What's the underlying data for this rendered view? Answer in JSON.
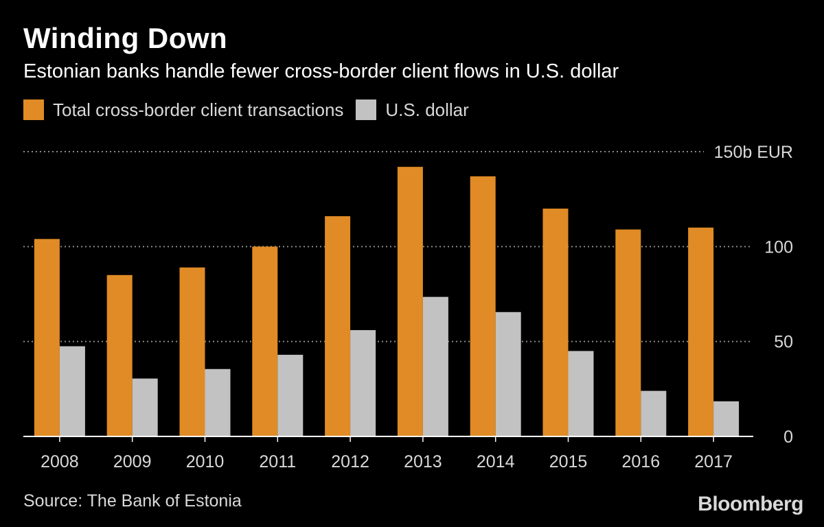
{
  "title": "Winding Down",
  "subtitle": "Estonian banks handle fewer cross-border client flows in U.S. dollar",
  "source": "Source: The Bank of Estonia",
  "brand": "Bloomberg",
  "colors": {
    "background": "#000000",
    "total": "#E08B25",
    "usd": "#C2C2C2",
    "text": "#D9D9D9",
    "gridline": "#8C8C8C"
  },
  "chart_data": {
    "type": "bar",
    "title": "Winding Down",
    "subtitle": "Estonian banks handle fewer cross-border client flows in U.S. dollar",
    "xlabel": "",
    "ylabel": "",
    "ylim": [
      0,
      150
    ],
    "y_unit_label": "150b EUR",
    "y_ticks": [
      {
        "value": 0,
        "label": "0"
      },
      {
        "value": 50,
        "label": "50"
      },
      {
        "value": 100,
        "label": "100"
      },
      {
        "value": 150,
        "label": "150b EUR"
      }
    ],
    "grid": true,
    "legend_position": "top-left",
    "categories": [
      "2008",
      "2009",
      "2010",
      "2011",
      "2012",
      "2013",
      "2014",
      "2015",
      "2016",
      "2017"
    ],
    "series": [
      {
        "name": "Total cross-border client transactions",
        "color": "#E08B25",
        "values": [
          104,
          85,
          89,
          100,
          116,
          142,
          137,
          120,
          109,
          110
        ]
      },
      {
        "name": "U.S. dollar",
        "color": "#C2C2C2",
        "values": [
          47.5,
          30.5,
          35.5,
          43,
          56,
          73.5,
          65.5,
          45,
          24,
          18.5
        ]
      }
    ]
  }
}
